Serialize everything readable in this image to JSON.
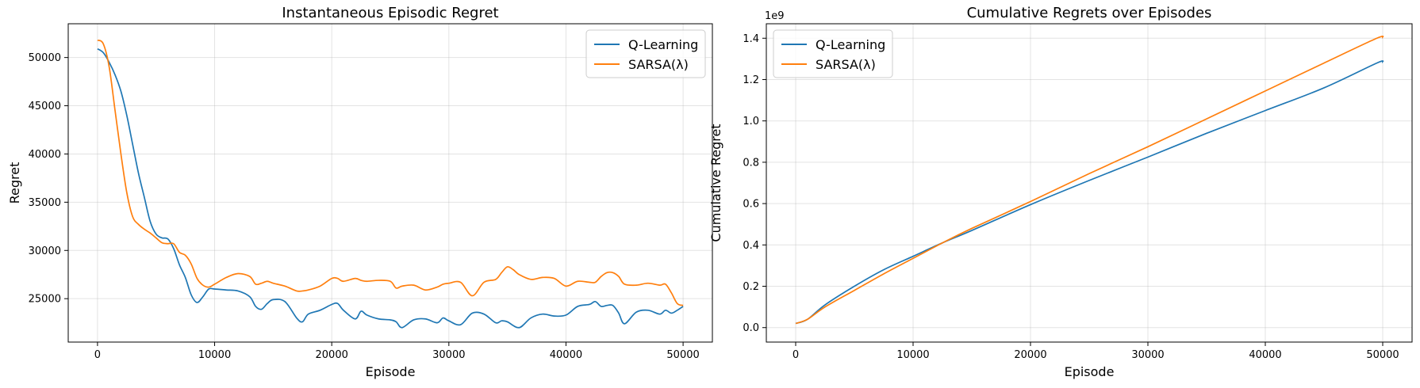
{
  "chart_data": [
    {
      "type": "line",
      "title": "Instantaneous Episodic Regret",
      "xlabel": "Episode",
      "ylabel": "Regret",
      "xlim": [
        -2500,
        52500
      ],
      "ylim": [
        20500,
        53500
      ],
      "xticks": [
        0,
        10000,
        20000,
        30000,
        40000,
        50000
      ],
      "yticks": [
        25000,
        30000,
        35000,
        40000,
        45000,
        50000
      ],
      "grid": true,
      "legend": "top-right",
      "series": [
        {
          "name": "Q-Learning",
          "color": "#1f77b4",
          "x": [
            0,
            500,
            1000,
            1500,
            2000,
            2500,
            3000,
            3500,
            4000,
            4500,
            5000,
            5500,
            6000,
            6500,
            7000,
            7500,
            8000,
            8500,
            9000,
            9500,
            10000,
            11000,
            12000,
            13000,
            13500,
            14000,
            14500,
            15000,
            16000,
            17000,
            17500,
            18000,
            19000,
            20000,
            20500,
            21000,
            22000,
            22500,
            23000,
            24000,
            25000,
            25500,
            26000,
            27000,
            28000,
            29000,
            29500,
            30000,
            31000,
            32000,
            33000,
            34000,
            34500,
            35000,
            36000,
            37000,
            38000,
            39000,
            40000,
            41000,
            42000,
            42500,
            43000,
            43500,
            44000,
            44500,
            45000,
            46000,
            47000,
            48000,
            48500,
            49000,
            49500,
            50000
          ],
          "y": [
            50900,
            50500,
            49500,
            48200,
            46500,
            44000,
            41000,
            38000,
            35500,
            33000,
            31700,
            31300,
            31200,
            30200,
            28500,
            27200,
            25400,
            24600,
            25200,
            26000,
            26000,
            25900,
            25800,
            25200,
            24200,
            23900,
            24500,
            24900,
            24700,
            23000,
            22600,
            23400,
            23800,
            24400,
            24500,
            23800,
            22900,
            23700,
            23300,
            22900,
            22800,
            22600,
            22000,
            22800,
            22900,
            22500,
            23000,
            22700,
            22300,
            23500,
            23400,
            22500,
            22700,
            22600,
            22000,
            23000,
            23400,
            23200,
            23300,
            24200,
            24400,
            24700,
            24200,
            24300,
            24300,
            23500,
            22400,
            23600,
            23800,
            23400,
            23800,
            23500,
            23800,
            24200
          ]
        },
        {
          "name": "SARSA(λ)",
          "color": "#ff7f0e",
          "x": [
            0,
            500,
            1000,
            1500,
            2000,
            2500,
            3000,
            3500,
            4000,
            4500,
            5000,
            5500,
            6000,
            6500,
            7000,
            7500,
            8000,
            8500,
            9000,
            9500,
            10000,
            11000,
            12000,
            13000,
            13500,
            14000,
            14500,
            15000,
            16000,
            17000,
            17500,
            18000,
            19000,
            20000,
            20500,
            21000,
            22000,
            22500,
            23000,
            24000,
            25000,
            25500,
            26000,
            27000,
            28000,
            29000,
            29500,
            30000,
            31000,
            32000,
            33000,
            34000,
            34500,
            35000,
            35500,
            36000,
            37000,
            38000,
            39000,
            40000,
            41000,
            42000,
            42500,
            43000,
            43500,
            44000,
            44500,
            45000,
            46000,
            47000,
            48000,
            48500,
            49000,
            49500,
            50000
          ],
          "y": [
            51800,
            51400,
            49000,
            44500,
            40000,
            36000,
            33500,
            32700,
            32200,
            31800,
            31300,
            30800,
            30700,
            30700,
            29800,
            29500,
            28600,
            27100,
            26400,
            26200,
            26500,
            27200,
            27600,
            27300,
            26500,
            26600,
            26800,
            26600,
            26300,
            25800,
            25800,
            25900,
            26300,
            27100,
            27100,
            26800,
            27100,
            26900,
            26800,
            26900,
            26800,
            26100,
            26300,
            26400,
            25900,
            26200,
            26500,
            26600,
            26700,
            25300,
            26700,
            27000,
            27700,
            28300,
            28000,
            27500,
            27000,
            27200,
            27100,
            26300,
            26800,
            26700,
            26700,
            27300,
            27700,
            27700,
            27300,
            26500,
            26400,
            26600,
            26400,
            26500,
            25600,
            24500,
            24300
          ]
        }
      ]
    },
    {
      "type": "line",
      "title": "Cumulative Regrets over Episodes",
      "xlabel": "Episode",
      "ylabel": "Cumulative Regret",
      "y_offset_label": "1e9",
      "xlim": [
        -2500,
        52500
      ],
      "ylim": [
        -0.07,
        1.47
      ],
      "xticks": [
        0,
        10000,
        20000,
        30000,
        40000,
        50000
      ],
      "yticks": [
        0.0,
        0.2,
        0.4,
        0.6,
        0.8,
        1.0,
        1.2,
        1.4
      ],
      "ytick_labels": [
        "0.0",
        "0.2",
        "0.4",
        "0.6",
        "0.8",
        "1.0",
        "1.2",
        "1.4"
      ],
      "grid": true,
      "legend": "top-left",
      "series": [
        {
          "name": "Q-Learning",
          "color": "#1f77b4",
          "x": [
            0,
            1000,
            2500,
            5000,
            7500,
            10000,
            12500,
            15000,
            20000,
            25000,
            30000,
            35000,
            40000,
            45000,
            49500,
            50000
          ],
          "y": [
            0.02,
            0.04,
            0.11,
            0.2,
            0.28,
            0.345,
            0.41,
            0.47,
            0.595,
            0.712,
            0.825,
            0.94,
            1.05,
            1.16,
            1.28,
            1.283
          ]
        },
        {
          "name": "SARSA(λ)",
          "color": "#ff7f0e",
          "x": [
            0,
            1000,
            2500,
            5000,
            7500,
            10000,
            12500,
            15000,
            20000,
            25000,
            30000,
            35000,
            40000,
            45000,
            49500,
            50000
          ],
          "y": [
            0.02,
            0.04,
            0.1,
            0.18,
            0.26,
            0.335,
            0.41,
            0.48,
            0.61,
            0.745,
            0.875,
            1.01,
            1.145,
            1.28,
            1.4,
            1.402
          ]
        }
      ]
    }
  ]
}
